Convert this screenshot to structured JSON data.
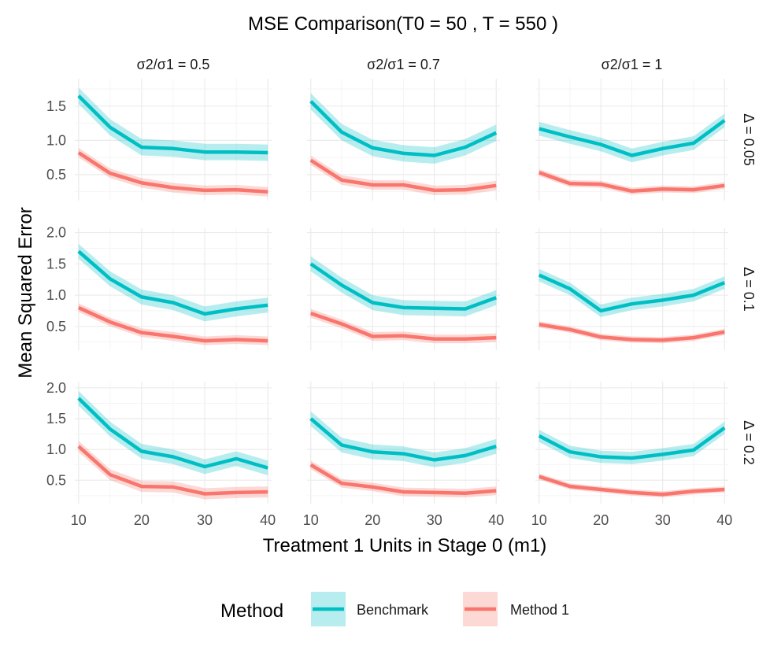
{
  "chart_data": {
    "type": "line",
    "title": "MSE Comparison(T0 = 50 , T = 550 )",
    "xlabel": "Treatment 1 Units in Stage 0 (m1)",
    "ylabel": "Mean Squared Error",
    "x": [
      10,
      15,
      20,
      25,
      30,
      35,
      40
    ],
    "xticks": [
      10,
      20,
      30,
      40
    ],
    "xlim": [
      9.4,
      40.6
    ],
    "col_labels": [
      "σ2/σ1 = 0.5",
      "σ2/σ1 = 0.7",
      "σ2/σ1 = 1"
    ],
    "row_labels": [
      "Δ = 0.05",
      "Δ = 0.1",
      "Δ = 0.2"
    ],
    "rows": [
      {
        "ylim": [
          0.12,
          1.9
        ],
        "yticks": [
          0.5,
          1.0,
          1.5
        ],
        "ytick_labels": [
          "0.5",
          "1.0",
          "1.5"
        ]
      },
      {
        "ylim": [
          0.12,
          2.07
        ],
        "yticks": [
          0.5,
          1.0,
          1.5,
          2.0
        ],
        "ytick_labels": [
          "0.5",
          "1.0",
          "1.5",
          "2.0"
        ]
      },
      {
        "ylim": [
          0.12,
          2.1
        ],
        "yticks": [
          0.5,
          1.0,
          1.5,
          2.0
        ],
        "ytick_labels": [
          "0.5",
          "1.0",
          "1.5",
          "2.0"
        ]
      }
    ],
    "legend": {
      "title": "Method",
      "position": "bottom",
      "entries": [
        {
          "name": "Benchmark",
          "color": "#00BFC4"
        },
        {
          "name": "Method 1",
          "color": "#F8766D"
        }
      ]
    },
    "panels": [
      {
        "row": 0,
        "col": 0,
        "series": [
          {
            "name": "Benchmark",
            "values": [
              1.65,
              1.19,
              0.9,
              0.88,
              0.83,
              0.83,
              0.82
            ],
            "band": 0.12
          },
          {
            "name": "Method 1",
            "values": [
              0.82,
              0.52,
              0.38,
              0.31,
              0.27,
              0.28,
              0.25
            ],
            "band": 0.07
          }
        ]
      },
      {
        "row": 0,
        "col": 1,
        "series": [
          {
            "name": "Benchmark",
            "values": [
              1.57,
              1.12,
              0.89,
              0.81,
              0.78,
              0.9,
              1.11
            ],
            "band": 0.12
          },
          {
            "name": "Method 1",
            "values": [
              0.71,
              0.42,
              0.35,
              0.35,
              0.27,
              0.28,
              0.34
            ],
            "band": 0.07
          }
        ]
      },
      {
        "row": 0,
        "col": 2,
        "series": [
          {
            "name": "Benchmark",
            "values": [
              1.17,
              1.05,
              0.94,
              0.78,
              0.88,
              0.96,
              1.29
            ],
            "band": 0.1
          },
          {
            "name": "Method 1",
            "values": [
              0.53,
              0.37,
              0.36,
              0.26,
              0.29,
              0.28,
              0.34
            ],
            "band": 0.05
          }
        ]
      },
      {
        "row": 1,
        "col": 0,
        "series": [
          {
            "name": "Benchmark",
            "values": [
              1.7,
              1.26,
              0.97,
              0.88,
              0.7,
              0.78,
              0.84
            ],
            "band": 0.12
          },
          {
            "name": "Method 1",
            "values": [
              0.8,
              0.57,
              0.4,
              0.34,
              0.27,
              0.29,
              0.27
            ],
            "band": 0.07
          }
        ]
      },
      {
        "row": 1,
        "col": 1,
        "series": [
          {
            "name": "Benchmark",
            "values": [
              1.5,
              1.16,
              0.88,
              0.8,
              0.79,
              0.78,
              0.96
            ],
            "band": 0.12
          },
          {
            "name": "Method 1",
            "values": [
              0.71,
              0.54,
              0.34,
              0.35,
              0.3,
              0.3,
              0.32
            ],
            "band": 0.07
          }
        ]
      },
      {
        "row": 1,
        "col": 2,
        "series": [
          {
            "name": "Benchmark",
            "values": [
              1.32,
              1.1,
              0.75,
              0.86,
              0.92,
              1.0,
              1.2
            ],
            "band": 0.1
          },
          {
            "name": "Method 1",
            "values": [
              0.53,
              0.45,
              0.33,
              0.29,
              0.28,
              0.32,
              0.41
            ],
            "band": 0.05
          }
        ]
      },
      {
        "row": 2,
        "col": 0,
        "series": [
          {
            "name": "Benchmark",
            "values": [
              1.83,
              1.33,
              0.97,
              0.88,
              0.72,
              0.85,
              0.7
            ],
            "band": 0.12
          },
          {
            "name": "Method 1",
            "values": [
              1.05,
              0.59,
              0.4,
              0.39,
              0.28,
              0.3,
              0.31
            ],
            "band": 0.09
          }
        ]
      },
      {
        "row": 2,
        "col": 1,
        "series": [
          {
            "name": "Benchmark",
            "values": [
              1.5,
              1.07,
              0.96,
              0.93,
              0.83,
              0.9,
              1.05
            ],
            "band": 0.12
          },
          {
            "name": "Method 1",
            "values": [
              0.75,
              0.45,
              0.39,
              0.31,
              0.3,
              0.29,
              0.33
            ],
            "band": 0.07
          }
        ]
      },
      {
        "row": 2,
        "col": 2,
        "series": [
          {
            "name": "Benchmark",
            "values": [
              1.22,
              0.96,
              0.88,
              0.86,
              0.92,
              0.99,
              1.35
            ],
            "band": 0.1
          },
          {
            "name": "Method 1",
            "values": [
              0.56,
              0.4,
              0.35,
              0.3,
              0.27,
              0.32,
              0.35
            ],
            "band": 0.05
          }
        ]
      }
    ]
  }
}
